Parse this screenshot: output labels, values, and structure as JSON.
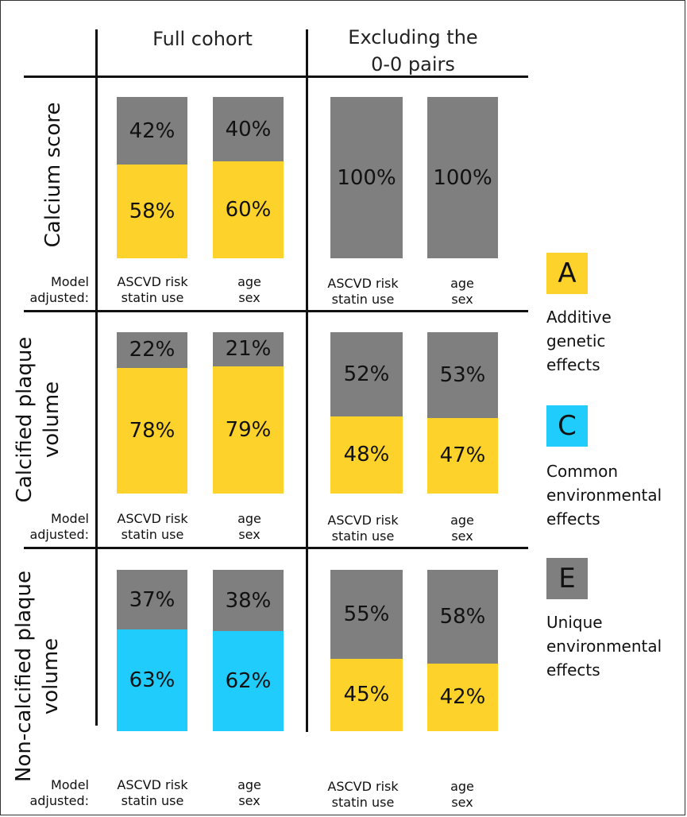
{
  "headers": {
    "full_cohort": "Full cohort",
    "excluding_line1": "Excluding the",
    "excluding_line2": "0-0 pairs"
  },
  "rows": [
    {
      "label_line1": "Calcium score",
      "label_line2": ""
    },
    {
      "label_line1": "Calcified plaque",
      "label_line2": "volume"
    },
    {
      "label_line1": "Non-calcified plaque",
      "label_line2": "volume"
    }
  ],
  "model_adjusted": {
    "line1": "Model",
    "line2": "adjusted:"
  },
  "adjustments": [
    {
      "line1": "ASCVD risk",
      "line2": "statin use"
    },
    {
      "line1": "age",
      "line2": "sex"
    }
  ],
  "legend": [
    {
      "letter": "A",
      "color": "#FDD22A",
      "line1": "Additive",
      "line2": "genetic",
      "line3": "effects"
    },
    {
      "letter": "C",
      "color": "#20CCFB",
      "line1": "Common",
      "line2": "environmental",
      "line3": "effects"
    },
    {
      "letter": "E",
      "color": "#7F7F7F",
      "line1": "Unique",
      "line2": "environmental",
      "line3": "effects"
    }
  ],
  "chart_data": {
    "type": "bar",
    "stacked": true,
    "components": [
      "A",
      "C",
      "E"
    ],
    "colors": {
      "A": "#FDD22A",
      "C": "#20CCFB",
      "E": "#7F7F7F"
    },
    "bars": [
      {
        "outcome": "Calcium score",
        "cohort": "Full cohort",
        "adjusted": "ASCVD risk, statin use",
        "A": 58,
        "C": 0,
        "E": 42
      },
      {
        "outcome": "Calcium score",
        "cohort": "Full cohort",
        "adjusted": "age, sex",
        "A": 60,
        "C": 0,
        "E": 40
      },
      {
        "outcome": "Calcium score",
        "cohort": "Excluding the 0-0 pairs",
        "adjusted": "ASCVD risk, statin use",
        "A": 0,
        "C": 0,
        "E": 100
      },
      {
        "outcome": "Calcium score",
        "cohort": "Excluding the 0-0 pairs",
        "adjusted": "age, sex",
        "A": 0,
        "C": 0,
        "E": 100
      },
      {
        "outcome": "Calcified plaque volume",
        "cohort": "Full cohort",
        "adjusted": "ASCVD risk, statin use",
        "A": 78,
        "C": 0,
        "E": 22
      },
      {
        "outcome": "Calcified plaque volume",
        "cohort": "Full cohort",
        "adjusted": "age, sex",
        "A": 79,
        "C": 0,
        "E": 21
      },
      {
        "outcome": "Calcified plaque volume",
        "cohort": "Excluding the 0-0 pairs",
        "adjusted": "ASCVD risk, statin use",
        "A": 48,
        "C": 0,
        "E": 52
      },
      {
        "outcome": "Calcified plaque volume",
        "cohort": "Excluding the 0-0 pairs",
        "adjusted": "age, sex",
        "A": 47,
        "C": 0,
        "E": 53
      },
      {
        "outcome": "Non-calcified plaque volume",
        "cohort": "Full cohort",
        "adjusted": "ASCVD risk, statin use",
        "A": 0,
        "C": 63,
        "E": 37
      },
      {
        "outcome": "Non-calcified plaque volume",
        "cohort": "Full cohort",
        "adjusted": "age, sex",
        "A": 0,
        "C": 62,
        "E": 38
      },
      {
        "outcome": "Non-calcified plaque volume",
        "cohort": "Excluding the 0-0 pairs",
        "adjusted": "ASCVD risk, statin use",
        "A": 45,
        "C": 0,
        "E": 55
      },
      {
        "outcome": "Non-calcified plaque volume",
        "cohort": "Excluding the 0-0 pairs",
        "adjusted": "age, sex",
        "A": 42,
        "C": 0,
        "E": 58
      }
    ]
  }
}
